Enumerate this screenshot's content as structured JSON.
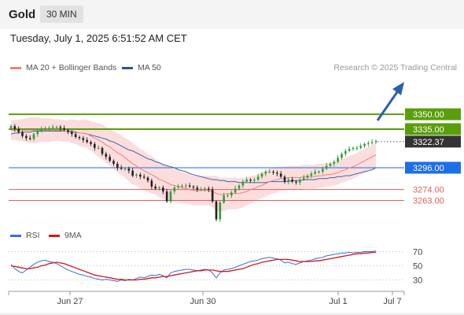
{
  "header": {
    "title": "Gold",
    "timeframe": "30 MIN",
    "datetime": "Tuesday, July 1, 2025 6:51:52 AM CET",
    "credit": "Research © 2025 Trading Central"
  },
  "legend": {
    "ma20_label": "MA 20 + Bollinger Bands",
    "ma50_label": "MA 50",
    "rsi_label": "RSI",
    "rsi_ma_label": "9MA"
  },
  "colors": {
    "candle_up": "#2d9e3a",
    "candle_down": "#222222",
    "bollinger_band": "#f9d2d2",
    "ma20": "#f08080",
    "ma50": "#3f63a8",
    "resistance": "#5a9e0b",
    "pivot": "#1e6ee8",
    "support": "#e06060",
    "current": "#333333",
    "rsi": "#3a6fd6",
    "rsi_ma": "#d11a1a"
  },
  "chart_data": [
    {
      "type": "candlestick",
      "ylim": [
        3240,
        3355
      ],
      "x_ticks": [
        "Jun 27",
        "Jun 30",
        "Jul 1",
        "Jul 7"
      ],
      "levels": [
        {
          "label": "3350.00",
          "value": 3350.0,
          "kind": "resistance"
        },
        {
          "label": "3335.00",
          "value": 3335.0,
          "kind": "resistance"
        },
        {
          "label": "3322.37",
          "value": 3322.37,
          "kind": "current"
        },
        {
          "label": "3296.00",
          "value": 3296.0,
          "kind": "pivot"
        },
        {
          "label": "3274.00",
          "value": 3274.0,
          "kind": "support"
        },
        {
          "label": "3263.00",
          "value": 3263.0,
          "kind": "support"
        }
      ],
      "close": [
        3338,
        3335,
        3332,
        3328,
        3326,
        3325,
        3330,
        3333,
        3335,
        3336,
        3336,
        3337,
        3337,
        3336,
        3334,
        3332,
        3330,
        3327,
        3326,
        3324,
        3322,
        3320,
        3316,
        3316,
        3310,
        3307,
        3303,
        3300,
        3296,
        3295,
        3295,
        3293,
        3288,
        3289,
        3287,
        3286,
        3283,
        3277,
        3275,
        3276,
        3272,
        3262,
        3272,
        3276,
        3277,
        3278,
        3278,
        3277,
        3276,
        3274,
        3274,
        3275,
        3274,
        3262,
        3244,
        3261,
        3268,
        3268,
        3271,
        3275,
        3278,
        3282,
        3284,
        3283,
        3284,
        3287,
        3290,
        3292,
        3292,
        3291,
        3290,
        3287,
        3282,
        3284,
        3282,
        3281,
        3284,
        3286,
        3288,
        3290,
        3292,
        3292,
        3295,
        3298,
        3300,
        3302,
        3306,
        3310,
        3313,
        3315,
        3316,
        3316,
        3318,
        3320,
        3321,
        3322,
        3323
      ],
      "series": [
        {
          "name": "MA 20 + Bollinger Bands",
          "values": [
            3334,
            3334,
            3334,
            3334,
            3334,
            3334,
            3334,
            3334,
            3334,
            3334,
            3334,
            3334,
            3334,
            3334,
            3333,
            3333,
            3333,
            3332,
            3331,
            3331,
            3330,
            3328,
            3326,
            3324,
            3322,
            3319,
            3317,
            3314,
            3311,
            3309,
            3306,
            3303,
            3300,
            3298,
            3295,
            3293,
            3291,
            3289,
            3287,
            3284,
            3283,
            3281,
            3279,
            3278,
            3277,
            3276,
            3275,
            3274,
            3273,
            3273,
            3273,
            3273,
            3273,
            3272,
            3270,
            3269,
            3269,
            3270,
            3270,
            3270,
            3270,
            3271,
            3272,
            3274,
            3275,
            3277,
            3278,
            3280,
            3282,
            3283,
            3284,
            3285,
            3285,
            3286,
            3286,
            3286,
            3286,
            3287,
            3287,
            3287,
            3287,
            3288,
            3288,
            3289,
            3289,
            3290,
            3291,
            3293,
            3294,
            3296,
            3297,
            3299,
            3301,
            3303,
            3305,
            3307,
            3309
          ]
        },
        {
          "name": "MA 50",
          "values": [
            3330,
            3331,
            3331,
            3332,
            3332,
            3332,
            3333,
            3333,
            3333,
            3333,
            3333,
            3333,
            3333,
            3333,
            3333,
            3333,
            3332,
            3332,
            3331,
            3331,
            3330,
            3329,
            3328,
            3327,
            3326,
            3325,
            3323,
            3322,
            3320,
            3318,
            3316,
            3314,
            3313,
            3311,
            3309,
            3307,
            3305,
            3304,
            3302,
            3301,
            3299,
            3298,
            3297,
            3296,
            3294,
            3293,
            3292,
            3290,
            3289,
            3288,
            3287,
            3286,
            3285,
            3284,
            3284,
            3283,
            3283,
            3282,
            3282,
            3282,
            3281,
            3281,
            3281,
            3281,
            3281,
            3281,
            3281,
            3281,
            3282,
            3282,
            3282,
            3282,
            3282,
            3282,
            3283,
            3283,
            3283,
            3284,
            3284,
            3284,
            3284,
            3285,
            3285,
            3285,
            3286,
            3286,
            3287,
            3287,
            3288,
            3288,
            3289,
            3290,
            3291,
            3292,
            3293,
            3294,
            3296
          ]
        }
      ],
      "bollinger_width": [
        10,
        10,
        11,
        11,
        12,
        13,
        13,
        13,
        12,
        12,
        12,
        11,
        11,
        11,
        11,
        11,
        12,
        12,
        13,
        14,
        14,
        15,
        16,
        17,
        18,
        18,
        19,
        19,
        20,
        20,
        20,
        21,
        21,
        20,
        20,
        20,
        19,
        19,
        18,
        18,
        18,
        18,
        17,
        17,
        16,
        16,
        15,
        15,
        15,
        15,
        15,
        15,
        15,
        16,
        18,
        17,
        17,
        16,
        16,
        16,
        15,
        15,
        14,
        14,
        13,
        13,
        13,
        13,
        13,
        13,
        13,
        12,
        12,
        12,
        12,
        12,
        12,
        12,
        12,
        12,
        12,
        12,
        12,
        12,
        12,
        12,
        12,
        12,
        12,
        12,
        12,
        12,
        12,
        12,
        12,
        12,
        13
      ]
    },
    {
      "type": "line",
      "ylim": [
        20,
        80
      ],
      "y_ticks": [
        "70",
        "50",
        "30"
      ],
      "series": [
        {
          "name": "RSI",
          "values": [
            52,
            46,
            42,
            40,
            44,
            48,
            52,
            55,
            57,
            58,
            56,
            55,
            53,
            50,
            47,
            44,
            42,
            40,
            38,
            37,
            35,
            34,
            32,
            31,
            30,
            31,
            30,
            29,
            28,
            30,
            29,
            31,
            30,
            32,
            34,
            33,
            35,
            37,
            36,
            38,
            36,
            33,
            40,
            42,
            43,
            44,
            45,
            45,
            44,
            43,
            44,
            45,
            44,
            40,
            33,
            40,
            44,
            45,
            46,
            48,
            50,
            52,
            54,
            56,
            57,
            58,
            60,
            61,
            62,
            61,
            60,
            58,
            54,
            55,
            53,
            52,
            54,
            56,
            57,
            58,
            60,
            61,
            62,
            64,
            65,
            66,
            67,
            68,
            68,
            69,
            68,
            69,
            69,
            70,
            70,
            70,
            71
          ]
        },
        {
          "name": "9MA",
          "values": [
            50,
            49,
            48,
            47,
            46,
            46,
            47,
            48,
            50,
            51,
            53,
            54,
            55,
            54,
            53,
            51,
            49,
            47,
            45,
            43,
            41,
            39,
            37,
            36,
            35,
            34,
            33,
            32,
            31,
            31,
            30,
            30,
            30,
            30,
            31,
            31,
            32,
            33,
            33,
            34,
            35,
            35,
            36,
            37,
            38,
            39,
            40,
            41,
            42,
            43,
            43,
            44,
            44,
            44,
            43,
            42,
            42,
            42,
            43,
            44,
            45,
            46,
            48,
            50,
            52,
            53,
            55,
            56,
            57,
            58,
            59,
            59,
            59,
            59,
            58,
            57,
            56,
            56,
            56,
            56,
            57,
            57,
            58,
            59,
            60,
            61,
            62,
            63,
            64,
            65,
            66,
            67,
            67,
            68,
            68,
            69,
            69
          ]
        }
      ]
    }
  ]
}
